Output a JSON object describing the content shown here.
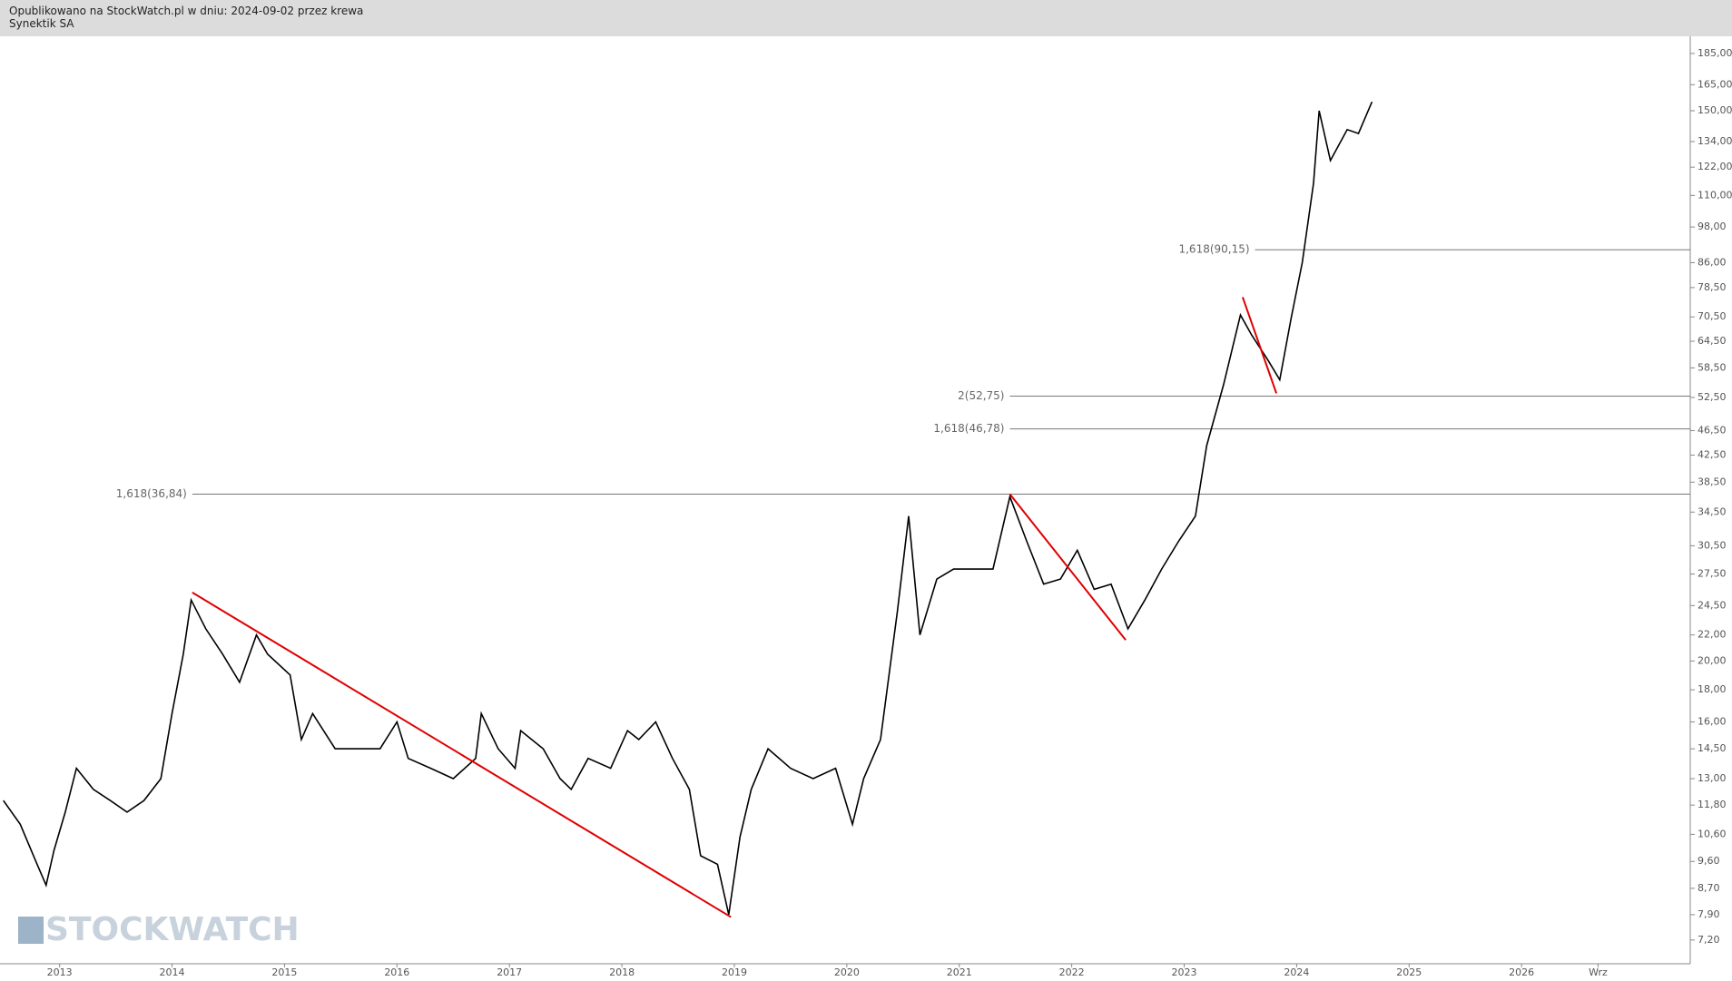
{
  "header": {
    "line1": "Opublikowano na StockWatch.pl w dniu: 2024-09-02 przez krewa",
    "line2": "Synektik SA"
  },
  "watermark": "STOCKWATCH",
  "chart_data": {
    "type": "line",
    "log_scale": true,
    "x": [
      2012.5,
      2012.65,
      2012.8,
      2012.88,
      2012.95,
      2013.05,
      2013.15,
      2013.3,
      2013.45,
      2013.6,
      2013.75,
      2013.9,
      2014.0,
      2014.1,
      2014.17,
      2014.3,
      2014.45,
      2014.6,
      2014.75,
      2014.85,
      2015.05,
      2015.15,
      2015.25,
      2015.45,
      2015.65,
      2015.85,
      2016.0,
      2016.1,
      2016.3,
      2016.5,
      2016.7,
      2016.75,
      2016.9,
      2017.05,
      2017.1,
      2017.3,
      2017.45,
      2017.55,
      2017.7,
      2017.9,
      2018.05,
      2018.15,
      2018.3,
      2018.45,
      2018.6,
      2018.7,
      2018.85,
      2018.95,
      2019.05,
      2019.15,
      2019.3,
      2019.5,
      2019.7,
      2019.9,
      2020.05,
      2020.15,
      2020.3,
      2020.45,
      2020.55,
      2020.65,
      2020.8,
      2020.95,
      2021.1,
      2021.3,
      2021.45,
      2021.6,
      2021.75,
      2021.9,
      2022.05,
      2022.2,
      2022.35,
      2022.5,
      2022.65,
      2022.8,
      2022.95,
      2023.1,
      2023.2,
      2023.35,
      2023.5,
      2023.6,
      2023.75,
      2023.85,
      2023.95,
      2024.05,
      2024.15,
      2024.2,
      2024.3,
      2024.45,
      2024.55,
      2024.67
    ],
    "series": [
      {
        "name": "Synektik SA",
        "color": "#000000",
        "values": [
          12.0,
          11.0,
          9.5,
          8.8,
          10.0,
          11.5,
          13.5,
          12.5,
          12.0,
          11.5,
          12.0,
          13.0,
          16.5,
          20.5,
          25.0,
          22.5,
          20.5,
          18.5,
          22.0,
          20.5,
          19.0,
          15.0,
          16.5,
          14.5,
          14.5,
          14.5,
          16.0,
          14.0,
          13.5,
          13.0,
          14.0,
          16.5,
          14.5,
          13.5,
          15.5,
          14.5,
          13.0,
          12.5,
          14.0,
          13.5,
          15.5,
          15.0,
          16.0,
          14.0,
          12.5,
          9.8,
          9.5,
          7.9,
          10.5,
          12.5,
          14.5,
          13.5,
          13.0,
          13.5,
          11.0,
          13.0,
          15.0,
          24.0,
          34.0,
          22.0,
          27.0,
          28.0,
          28.0,
          28.0,
          36.5,
          31.0,
          26.5,
          27.0,
          30.0,
          26.0,
          26.5,
          22.5,
          25.0,
          28.0,
          31.0,
          34.0,
          44.0,
          55.0,
          71.0,
          66.0,
          60.0,
          56.0,
          70.0,
          86.0,
          115.0,
          150.0,
          125.0,
          140.0,
          138.0,
          155.0
        ]
      }
    ],
    "trend_lines": [
      {
        "color": "#e00000",
        "x": [
          2014.18,
          2018.97
        ],
        "values": [
          25.7,
          7.83
        ]
      },
      {
        "color": "#e00000",
        "x": [
          2021.45,
          2022.48
        ],
        "values": [
          36.84,
          21.6
        ]
      },
      {
        "color": "#e00000",
        "x": [
          2023.52,
          2023.82
        ],
        "values": [
          75.8,
          53.3
        ]
      }
    ],
    "levels": [
      {
        "label": "1,618(90,15)",
        "value": 90.15,
        "from": 2023.63
      },
      {
        "label": "2(52,75)",
        "value": 52.75,
        "from": 2021.45
      },
      {
        "label": "1,618(46,78)",
        "value": 46.78,
        "from": 2021.45
      },
      {
        "label": "1,618(36,84)",
        "value": 36.84,
        "from": 2014.18
      }
    ],
    "xlim": [
      2012.47,
      2027.5
    ],
    "xticks": [
      2013,
      2014,
      2015,
      2016,
      2017,
      2018,
      2019,
      2020,
      2021,
      2022,
      2023,
      2024,
      2025,
      2026,
      {
        "value": 2026.68,
        "label": "Wrz"
      }
    ],
    "ylim": [
      6.6,
      197
    ],
    "yticks": [
      {
        "value": 185,
        "label": "185,00"
      },
      {
        "value": 165,
        "label": "165,00"
      },
      {
        "value": 150,
        "label": "150,00"
      },
      {
        "value": 134,
        "label": "134,00"
      },
      {
        "value": 122,
        "label": "122,00"
      },
      {
        "value": 110,
        "label": "110,00"
      },
      {
        "value": 98,
        "label": "98,00"
      },
      {
        "value": 86,
        "label": "86,00"
      },
      {
        "value": 78.5,
        "label": "78,50"
      },
      {
        "value": 70.5,
        "label": "70,50"
      },
      {
        "value": 64.5,
        "label": "64,50"
      },
      {
        "value": 58.5,
        "label": "58,50"
      },
      {
        "value": 52.5,
        "label": "52,50"
      },
      {
        "value": 46.5,
        "label": "46,50"
      },
      {
        "value": 42.5,
        "label": "42,50"
      },
      {
        "value": 38.5,
        "label": "38,50"
      },
      {
        "value": 34.5,
        "label": "34,50"
      },
      {
        "value": 30.5,
        "label": "30,50"
      },
      {
        "value": 27.5,
        "label": "27,50"
      },
      {
        "value": 24.5,
        "label": "24,50"
      },
      {
        "value": 22,
        "label": "22,00"
      },
      {
        "value": 20,
        "label": "20,00"
      },
      {
        "value": 18,
        "label": "18,00"
      },
      {
        "value": 16,
        "label": "16,00"
      },
      {
        "value": 14.5,
        "label": "14,50"
      },
      {
        "value": 13,
        "label": "13,00"
      },
      {
        "value": 11.8,
        "label": "11,80"
      },
      {
        "value": 10.6,
        "label": "10,60"
      },
      {
        "value": 9.6,
        "label": "9,60"
      },
      {
        "value": 8.7,
        "label": "8,70"
      },
      {
        "value": 7.9,
        "label": "7,90"
      },
      {
        "value": 7.2,
        "label": "7,20"
      }
    ]
  }
}
